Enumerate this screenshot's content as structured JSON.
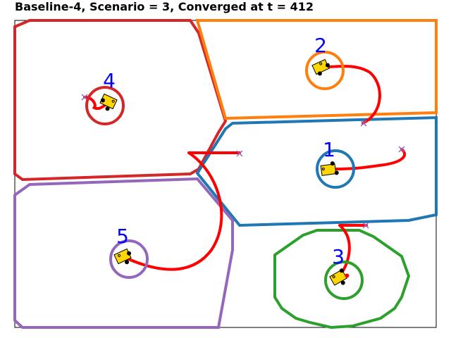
{
  "title": "Baseline-4, Scenario = 3, Converged at t = 412",
  "colors": {
    "region_1": "#1f77b4",
    "region_2": "#ff7f0e",
    "region_3": "#2ca02c",
    "region_4": "#d62728",
    "region_5": "#9467bd",
    "trajectory": "#ff0000",
    "label": "#0000ff",
    "robot_body": "#ffd700",
    "target_marker": "#9467bd"
  },
  "regions": [
    {
      "id": "1",
      "label": "1"
    },
    {
      "id": "2",
      "label": "2"
    },
    {
      "id": "3",
      "label": "3"
    },
    {
      "id": "4",
      "label": "4"
    },
    {
      "id": "5",
      "label": "5"
    }
  ],
  "icons": {
    "robot": "robot-icon",
    "target": "x-marker-icon"
  }
}
